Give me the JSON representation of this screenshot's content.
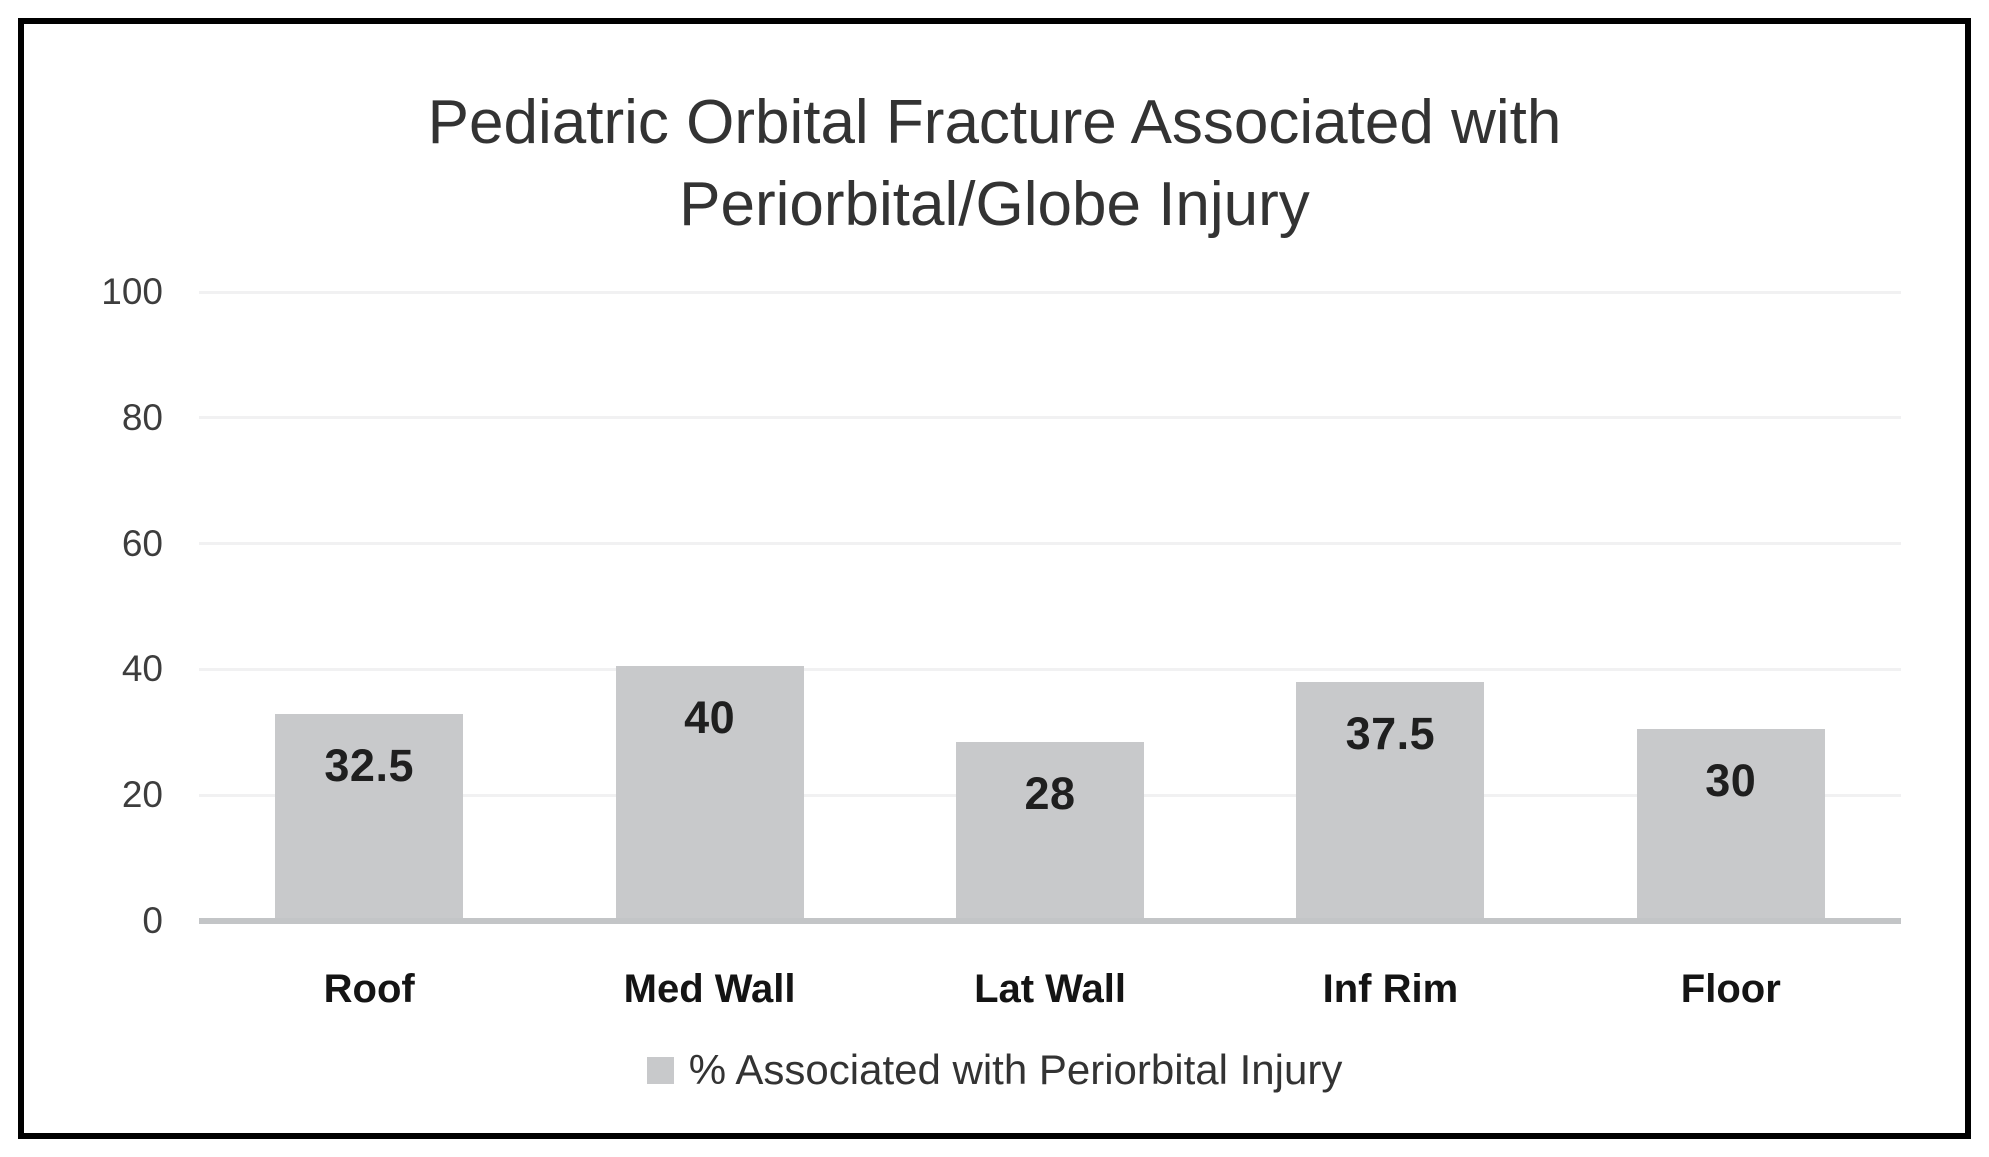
{
  "chart_data": {
    "type": "bar",
    "title": "Pediatric Orbital Fracture Associated with Periorbital/Globe Injury",
    "categories": [
      "Roof",
      "Med Wall",
      "Lat Wall",
      "Inf Rim",
      "Floor"
    ],
    "values": [
      32.5,
      40,
      28,
      37.5,
      30
    ],
    "value_labels": [
      "32.5",
      "40",
      "28",
      "37.5",
      "30"
    ],
    "series": [
      {
        "name": "% Associated with Periorbital Injury",
        "values": [
          32.5,
          40,
          28,
          37.5,
          30
        ]
      }
    ],
    "xlabel": "",
    "ylabel": "",
    "ylim": [
      0,
      100
    ],
    "y_ticks": [
      0,
      20,
      40,
      60,
      80,
      100
    ],
    "grid": true,
    "legend_position": "bottom",
    "colors": {
      "bar_fill": "#c8c9cb",
      "gridline": "#f1f1f2",
      "axis_line": "#c3c5c7",
      "title_text": "#333333",
      "tick_text": "#3d3d3d",
      "label_text": "#1f1f1f",
      "frame_border": "#000000"
    }
  },
  "legend": {
    "label": "% Associated with Periorbital Injury",
    "swatch_color": "#c8c9cb"
  }
}
